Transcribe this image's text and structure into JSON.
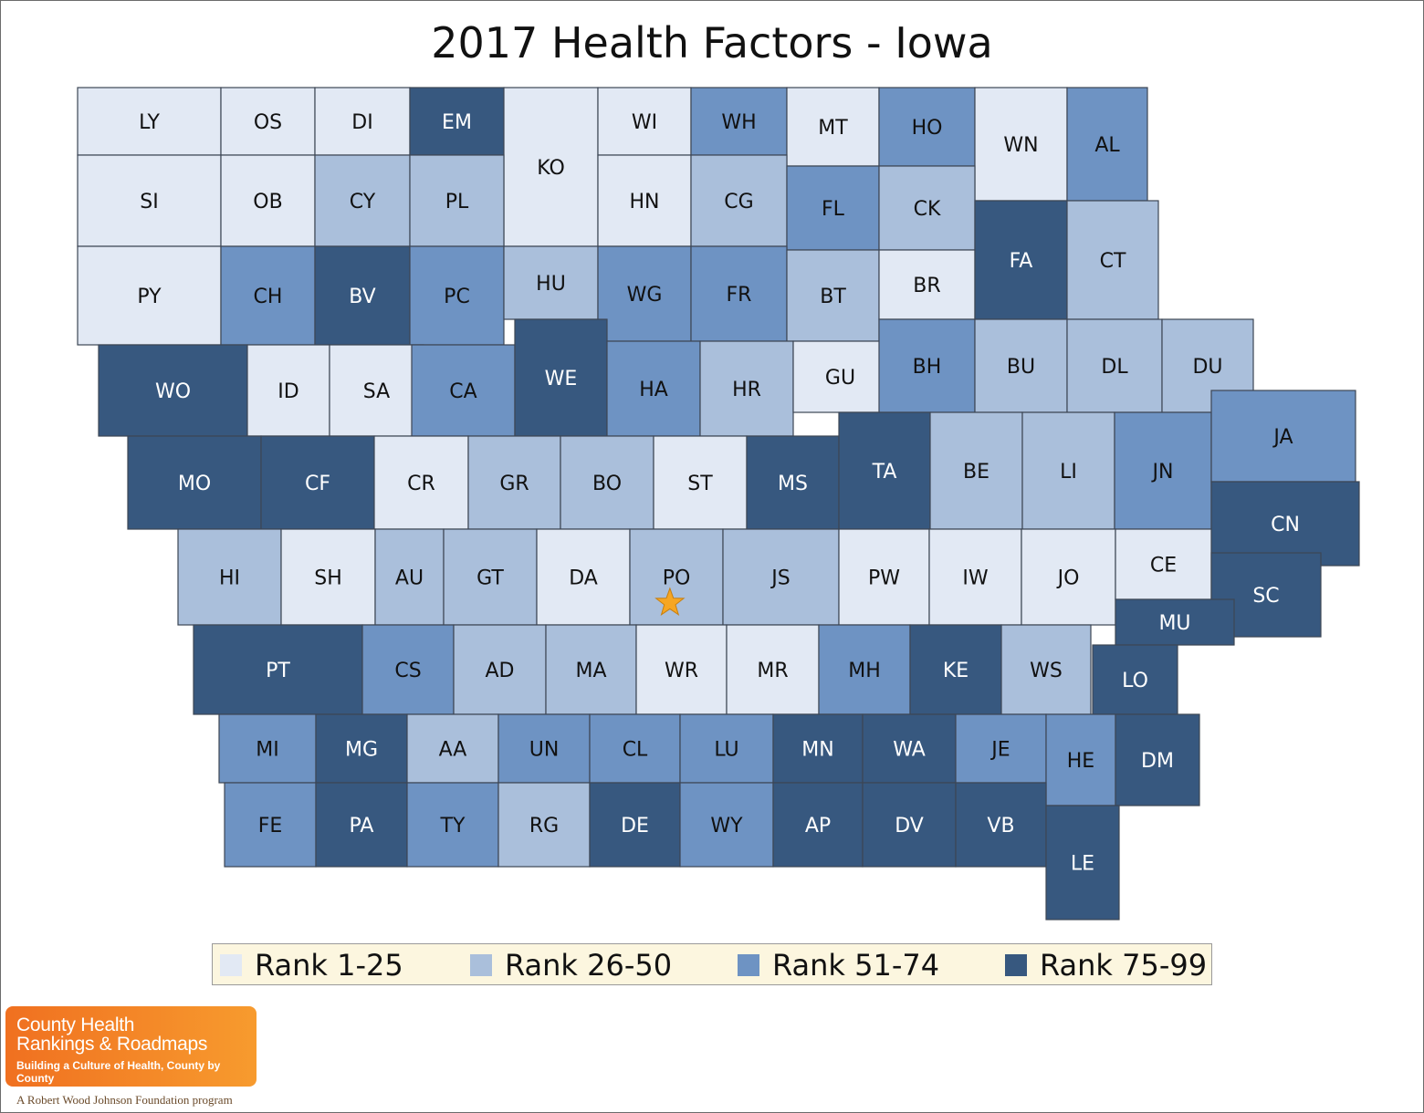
{
  "title": "2017 Health Factors - Iowa",
  "legend": [
    {
      "label": "Rank 1-25",
      "color": "#e2e9f4"
    },
    {
      "label": "Rank 26-50",
      "color": "#aabfdb"
    },
    {
      "label": "Rank 51-74",
      "color": "#6e93c3"
    },
    {
      "label": "Rank 75-99",
      "color": "#37587f"
    }
  ],
  "counties": [
    {
      "code": "LY",
      "rank": 0
    },
    {
      "code": "OS",
      "rank": 0
    },
    {
      "code": "DI",
      "rank": 0
    },
    {
      "code": "EM",
      "rank": 3
    },
    {
      "code": "KO",
      "rank": 0
    },
    {
      "code": "WI",
      "rank": 0
    },
    {
      "code": "WH",
      "rank": 2
    },
    {
      "code": "MT",
      "rank": 0
    },
    {
      "code": "HO",
      "rank": 2
    },
    {
      "code": "WN",
      "rank": 0
    },
    {
      "code": "AL",
      "rank": 2
    },
    {
      "code": "SI",
      "rank": 0
    },
    {
      "code": "OB",
      "rank": 0
    },
    {
      "code": "CY",
      "rank": 1
    },
    {
      "code": "PL",
      "rank": 1
    },
    {
      "code": "HN",
      "rank": 0
    },
    {
      "code": "CG",
      "rank": 1
    },
    {
      "code": "FL",
      "rank": 2
    },
    {
      "code": "CK",
      "rank": 1
    },
    {
      "code": "PY",
      "rank": 0
    },
    {
      "code": "CH",
      "rank": 2
    },
    {
      "code": "BV",
      "rank": 3
    },
    {
      "code": "PC",
      "rank": 2
    },
    {
      "code": "HU",
      "rank": 1
    },
    {
      "code": "WG",
      "rank": 2
    },
    {
      "code": "FR",
      "rank": 2
    },
    {
      "code": "BT",
      "rank": 1
    },
    {
      "code": "BR",
      "rank": 0
    },
    {
      "code": "FA",
      "rank": 3
    },
    {
      "code": "CT",
      "rank": 1
    },
    {
      "code": "WO",
      "rank": 3
    },
    {
      "code": "ID",
      "rank": 0
    },
    {
      "code": "SA",
      "rank": 0
    },
    {
      "code": "CA",
      "rank": 2
    },
    {
      "code": "WE",
      "rank": 3
    },
    {
      "code": "HA",
      "rank": 2
    },
    {
      "code": "HR",
      "rank": 1
    },
    {
      "code": "GU",
      "rank": 0
    },
    {
      "code": "BH",
      "rank": 2
    },
    {
      "code": "BU",
      "rank": 1
    },
    {
      "code": "DL",
      "rank": 1
    },
    {
      "code": "DU",
      "rank": 1
    },
    {
      "code": "MO",
      "rank": 3
    },
    {
      "code": "CF",
      "rank": 3
    },
    {
      "code": "CR",
      "rank": 0
    },
    {
      "code": "GR",
      "rank": 1
    },
    {
      "code": "BO",
      "rank": 1
    },
    {
      "code": "ST",
      "rank": 0
    },
    {
      "code": "MS",
      "rank": 3
    },
    {
      "code": "TA",
      "rank": 3
    },
    {
      "code": "BE",
      "rank": 1
    },
    {
      "code": "LI",
      "rank": 1
    },
    {
      "code": "JN",
      "rank": 2
    },
    {
      "code": "JA",
      "rank": 2
    },
    {
      "code": "CN",
      "rank": 3
    },
    {
      "code": "HI",
      "rank": 1
    },
    {
      "code": "SH",
      "rank": 0
    },
    {
      "code": "AU",
      "rank": 1
    },
    {
      "code": "GT",
      "rank": 1
    },
    {
      "code": "DA",
      "rank": 0
    },
    {
      "code": "PO",
      "rank": 1
    },
    {
      "code": "JS",
      "rank": 1
    },
    {
      "code": "PW",
      "rank": 0
    },
    {
      "code": "IW",
      "rank": 0
    },
    {
      "code": "JO",
      "rank": 0
    },
    {
      "code": "CE",
      "rank": 0
    },
    {
      "code": "SC",
      "rank": 3
    },
    {
      "code": "PT",
      "rank": 3
    },
    {
      "code": "CS",
      "rank": 2
    },
    {
      "code": "AD",
      "rank": 1
    },
    {
      "code": "MA",
      "rank": 1
    },
    {
      "code": "WR",
      "rank": 0
    },
    {
      "code": "MR",
      "rank": 0
    },
    {
      "code": "MH",
      "rank": 2
    },
    {
      "code": "KE",
      "rank": 3
    },
    {
      "code": "WS",
      "rank": 1
    },
    {
      "code": "MU",
      "rank": 3
    },
    {
      "code": "LO",
      "rank": 3
    },
    {
      "code": "MI",
      "rank": 2
    },
    {
      "code": "MG",
      "rank": 3
    },
    {
      "code": "AA",
      "rank": 1
    },
    {
      "code": "UN",
      "rank": 2
    },
    {
      "code": "CL",
      "rank": 2
    },
    {
      "code": "LU",
      "rank": 2
    },
    {
      "code": "MN",
      "rank": 3
    },
    {
      "code": "WA",
      "rank": 3
    },
    {
      "code": "JE",
      "rank": 2
    },
    {
      "code": "HE",
      "rank": 2
    },
    {
      "code": "DM",
      "rank": 3
    },
    {
      "code": "FE",
      "rank": 2
    },
    {
      "code": "PA",
      "rank": 3
    },
    {
      "code": "TY",
      "rank": 2
    },
    {
      "code": "RG",
      "rank": 1
    },
    {
      "code": "DE",
      "rank": 3
    },
    {
      "code": "WY",
      "rank": 2
    },
    {
      "code": "AP",
      "rank": 3
    },
    {
      "code": "DV",
      "rank": 3
    },
    {
      "code": "VB",
      "rank": 3
    },
    {
      "code": "LE",
      "rank": 3
    }
  ],
  "marker": {
    "county": "PO",
    "icon": "star-icon",
    "color": "#f6a623"
  },
  "logo": {
    "line1": "County Health",
    "line2": "Rankings & Roadmaps",
    "tagline": "Building a Culture of Health, County by County",
    "sponsor": "A Robert Wood Johnson Foundation program"
  }
}
